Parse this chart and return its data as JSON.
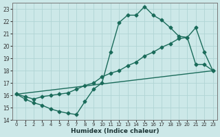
{
  "line1_x": [
    0,
    1,
    2,
    3,
    4,
    5,
    6,
    7,
    8,
    9,
    10,
    11,
    12,
    13,
    14,
    15,
    16,
    17,
    18,
    19,
    20,
    21,
    22,
    23
  ],
  "line1_y": [
    16.1,
    15.7,
    15.4,
    15.2,
    14.9,
    14.7,
    14.55,
    14.45,
    15.5,
    16.5,
    17.0,
    19.5,
    21.9,
    22.5,
    22.5,
    23.2,
    22.5,
    22.1,
    21.5,
    20.8,
    20.7,
    18.5,
    18.5,
    18.0
  ],
  "line2_x": [
    0,
    1,
    2,
    3,
    4,
    5,
    6,
    7,
    8,
    9,
    10,
    11,
    12,
    13,
    14,
    15,
    16,
    17,
    18,
    19,
    20,
    21,
    22,
    23
  ],
  "line2_y": [
    16.1,
    15.9,
    15.7,
    15.9,
    16.0,
    16.1,
    16.2,
    16.5,
    16.8,
    17.0,
    17.5,
    17.8,
    18.0,
    18.4,
    18.7,
    19.2,
    19.5,
    19.9,
    20.2,
    20.6,
    20.7,
    21.5,
    19.5,
    18.0
  ],
  "line3_x": [
    0,
    23
  ],
  "line3_y": [
    16.1,
    18.0
  ],
  "color": "#1a6b5a",
  "bg_color": "#cce8e8",
  "grid_color": "#b0d4d4",
  "xlabel": "Humidex (Indice chaleur)",
  "xlim": [
    -0.5,
    23.5
  ],
  "ylim": [
    14,
    23.5
  ],
  "yticks": [
    14,
    15,
    16,
    17,
    18,
    19,
    20,
    21,
    22,
    23
  ],
  "xticks": [
    0,
    1,
    2,
    3,
    4,
    5,
    6,
    7,
    8,
    9,
    10,
    11,
    12,
    13,
    14,
    15,
    16,
    17,
    18,
    19,
    20,
    21,
    22,
    23
  ],
  "marker": "D",
  "markersize": 2.5,
  "linewidth": 1.0
}
